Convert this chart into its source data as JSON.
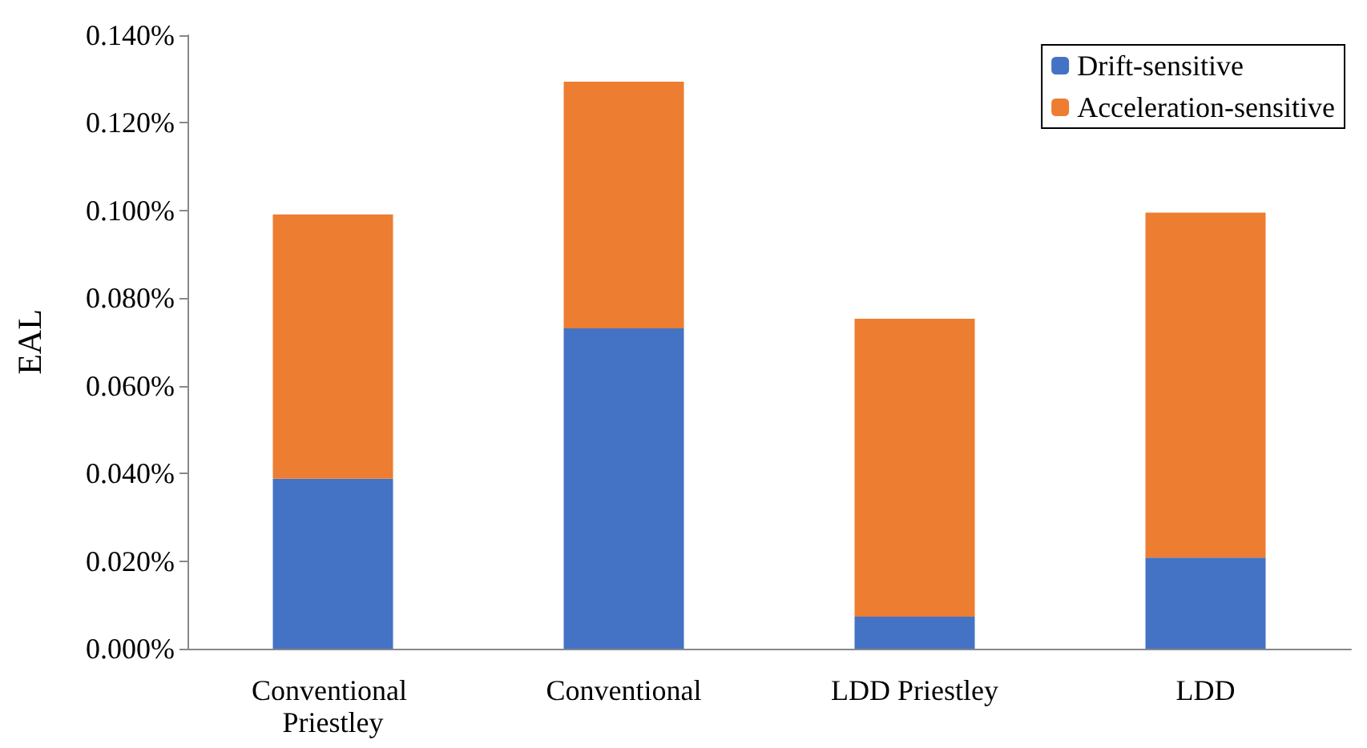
{
  "chart_data": {
    "type": "bar",
    "stacked": true,
    "ylabel": "EAL",
    "categories": [
      "Conventional Priestley",
      "Conventional",
      "LDD Priestley",
      "LDD"
    ],
    "series": [
      {
        "name": "Drift-sensitive",
        "color": "#4472c4",
        "values": [
          0.0388,
          0.0731,
          0.0073,
          0.0208
        ]
      },
      {
        "name": "Acceleration-sensitive",
        "color": "#ed7d31",
        "values": [
          0.0603,
          0.0563,
          0.068,
          0.0787
        ]
      }
    ],
    "ylim": [
      0,
      0.14
    ],
    "yticks": [
      {
        "value": 0,
        "label": "0.000%"
      },
      {
        "value": 0.02,
        "label": "0.020%"
      },
      {
        "value": 0.04,
        "label": "0.040%"
      },
      {
        "value": 0.06,
        "label": "0.060%"
      },
      {
        "value": 0.08,
        "label": "0.080%"
      },
      {
        "value": 0.1,
        "label": "0.100%"
      },
      {
        "value": 0.12,
        "label": "0.120%"
      },
      {
        "value": 0.14,
        "label": "0.140%"
      }
    ],
    "grid": false,
    "legend": "top right"
  }
}
